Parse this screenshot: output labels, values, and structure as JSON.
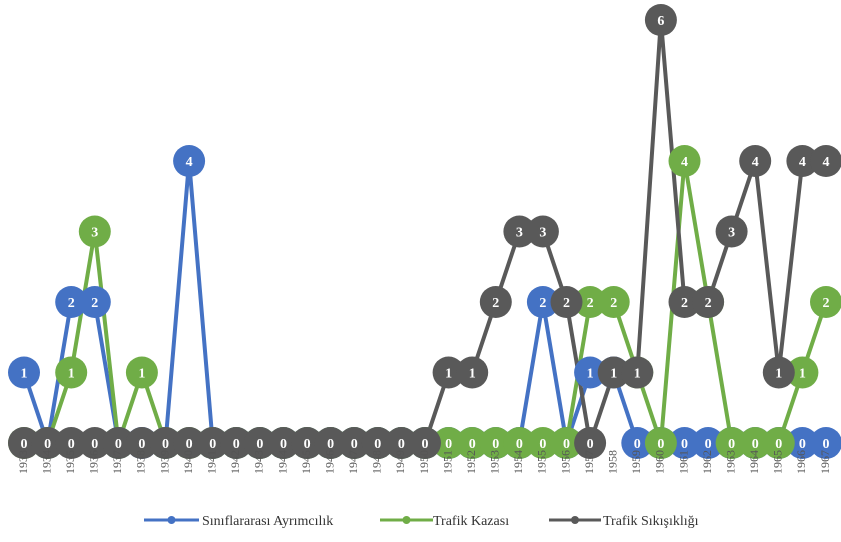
{
  "chart_data": {
    "type": "line",
    "categories": [
      "1933",
      "1934",
      "1935",
      "1936",
      "1937",
      "1938",
      "1939",
      "1940",
      "1941",
      "1942",
      "1943",
      "1944",
      "1945",
      "1946",
      "1947",
      "1948",
      "1949",
      "1950",
      "1951",
      "1952",
      "1953",
      "1954",
      "1955",
      "1956",
      "1957",
      "1958",
      "1959",
      "1960",
      "1961",
      "1962",
      "1963",
      "1964",
      "1965",
      "1966",
      "1967"
    ],
    "ylim": [
      0,
      6
    ],
    "grid": false,
    "legend_position": "bottom",
    "series": [
      {
        "name": "Sınıflararası Ayrımcılık",
        "color": "#4472C4",
        "values": [
          1,
          0,
          2,
          2,
          0,
          0,
          0,
          4,
          0,
          0,
          0,
          0,
          0,
          0,
          0,
          0,
          0,
          0,
          0,
          0,
          0,
          0,
          2,
          0,
          1,
          1,
          0,
          0,
          0,
          0,
          0,
          0,
          0,
          0,
          0
        ]
      },
      {
        "name": "Trafik Kazası",
        "color": "#70AD47",
        "values": [
          0,
          0,
          1,
          3,
          0,
          1,
          0,
          0,
          0,
          0,
          0,
          0,
          0,
          0,
          0,
          0,
          0,
          0,
          0,
          0,
          0,
          0,
          0,
          0,
          2,
          2,
          1,
          0,
          4,
          2,
          0,
          0,
          0,
          1,
          2
        ]
      },
      {
        "name": "Trafik Sıkışıklığı",
        "color": "#595959",
        "values": [
          0,
          0,
          0,
          0,
          0,
          0,
          0,
          0,
          0,
          0,
          0,
          0,
          0,
          0,
          0,
          0,
          0,
          0,
          1,
          1,
          2,
          3,
          3,
          2,
          0,
          1,
          1,
          6,
          2,
          2,
          3,
          4,
          1,
          4,
          4
        ]
      }
    ]
  }
}
